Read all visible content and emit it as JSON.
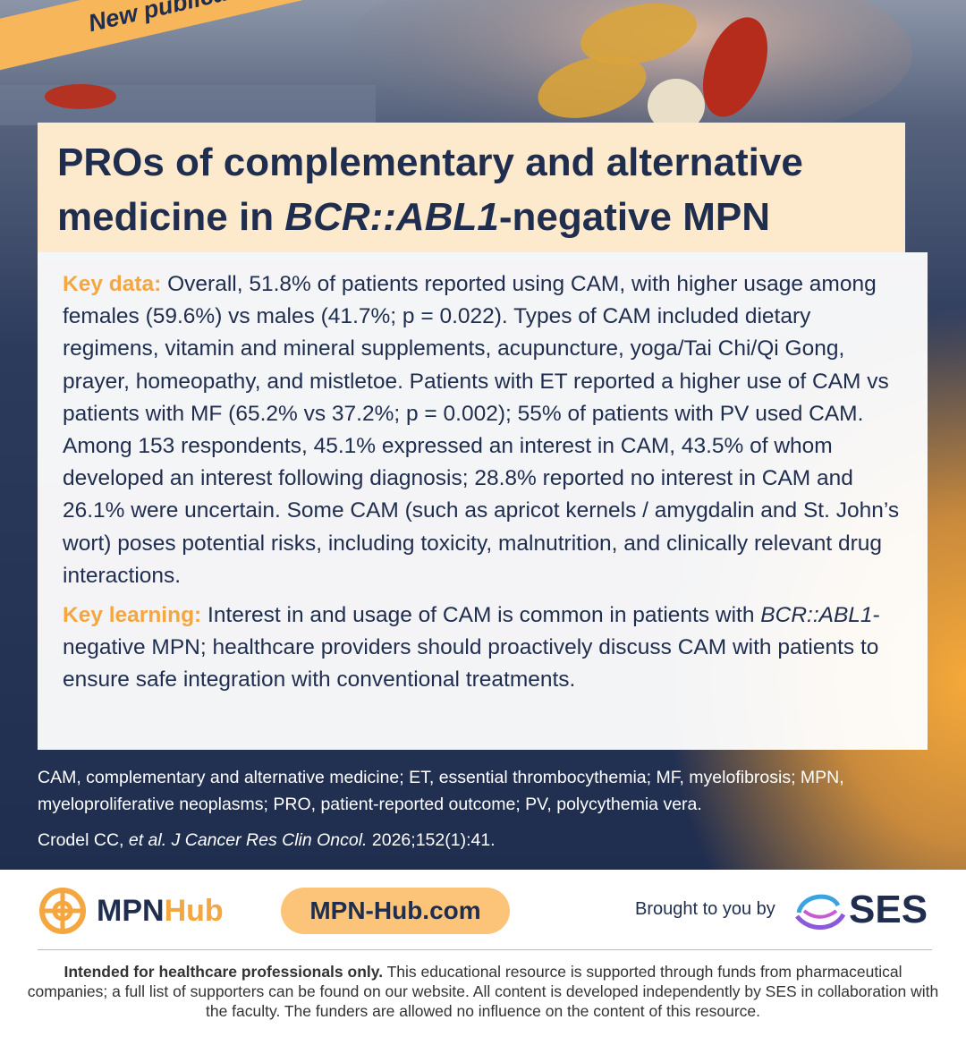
{
  "banner": "New publication",
  "title": {
    "parts": [
      "PROs of complementary and alternative medicine in ",
      "BCR::ABL1",
      "-negative MPN"
    ]
  },
  "key_data": {
    "label": "Key data:",
    "text": "Overall, 51.8% of patients reported using CAM, with higher usage among females (59.6%) vs males (41.7%; p = 0.022). Types of CAM included dietary regimens, vitamin and mineral supplements, acupuncture, yoga/Tai Chi/Qi Gong, prayer, homeopathy, and mistletoe. Patients with ET reported a higher use of CAM vs patients with MF (65.2% vs 37.2%; p = 0.002); 55% of patients with PV used CAM. Among 153 respondents, 45.1% expressed an interest in CAM, 43.5% of whom developed an interest following diagnosis; 28.8% reported no interest in CAM and 26.1% were uncertain. Some CAM (such as apricot kernels / amygdalin and St. John’s wort) poses potential risks, including toxicity, malnutrition, and clinically relevant drug interactions."
  },
  "key_learning": {
    "label": "Key learning:",
    "parts": [
      "Interest in and usage of CAM is common in patients with ",
      "BCR::ABL1",
      "-negative MPN; healthcare providers should proactively discuss CAM with patients to ensure safe integration with conventional treatments."
    ]
  },
  "abbreviations": "CAM, complementary and alternative medicine; ET, essential thrombocythemia; MF, myelofibrosis; MPN, myeloproliferative neoplasms; PRO, patient-reported outcome; PV, polycythemia vera.",
  "citation": {
    "parts": [
      "Crodel CC, ",
      "et al. J Cancer Res Clin Oncol.",
      " 2026;152(1):41."
    ]
  },
  "footer": {
    "logo": {
      "part1": "MPN",
      "part2": "Hub"
    },
    "website": "MPN-Hub.com",
    "brought_by": "Brought to you by",
    "sponsor": "SES",
    "disclaimer_bold": "Intended for healthcare professionals only.",
    "disclaimer": "This educational resource is supported through funds from pharmaceutical companies; a full list of supporters can be found on our website. All content is developed independently by SES in collaboration with the faculty. The funders are allowed no influence on the content of this resource."
  }
}
